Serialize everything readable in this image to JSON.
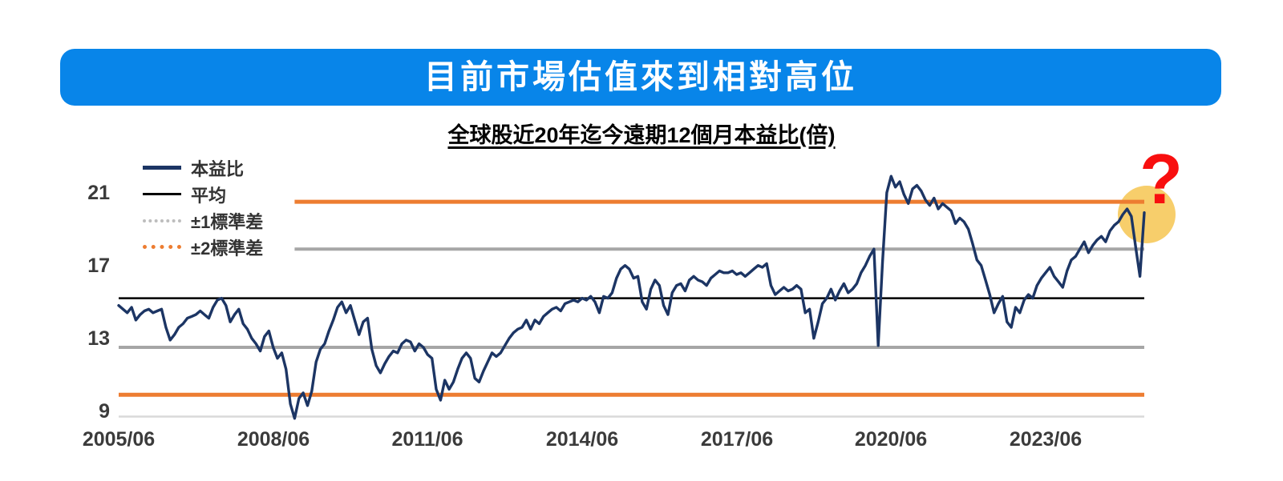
{
  "title": "目前市場估值來到相對高位",
  "colors": {
    "banner": "#0885E9",
    "series": "#1C3564",
    "mean_line": "#000000",
    "sd1_line": "#A6A6A6",
    "sd2_line": "#ED7D31",
    "axis_line": "#D9D9D9",
    "tick_text": "#3B3B3B",
    "question_mark": "#F80F0F",
    "highlight_circle": "#F7CE6B"
  },
  "legend": {
    "items": [
      {
        "name": "pe",
        "label": "本益比",
        "style": "solid",
        "color": "#1C3564"
      },
      {
        "name": "mean",
        "label": "平均",
        "style": "solid",
        "color": "#000000"
      },
      {
        "name": "sd1",
        "label": "±1標準差",
        "style": "dotted",
        "color": "#BDBDBD"
      },
      {
        "name": "sd2",
        "label": "±2標準差",
        "style": "dotted",
        "color": "#ED7D31"
      }
    ]
  },
  "annotations": {
    "question_mark": {
      "symbol": "?",
      "color": "#F80F0F"
    },
    "highlight_circle": {
      "color": "#F7CE6B"
    }
  },
  "chart_data": {
    "type": "line",
    "title": "全球股近20年迄今遠期12個月本益比(倍)",
    "xlabel": "",
    "ylabel": "",
    "frequency": "monthly",
    "x_start": "2005/06",
    "x_end": "2025/05",
    "xticks": [
      "2005/06",
      "2008/06",
      "2011/06",
      "2014/06",
      "2017/06",
      "2020/06",
      "2023/06"
    ],
    "yticks": [
      21,
      17,
      13,
      9
    ],
    "ylim": [
      8.7,
      22.3
    ],
    "grid": false,
    "legend_position": "top-left",
    "ref_lines": [
      {
        "name": "mean-line",
        "label": "平均",
        "value": 15.2,
        "color": "#000000",
        "width": 2.5,
        "x_start_month": 0
      },
      {
        "name": "plus-1sd-line",
        "label": "+1標準差",
        "value": 17.9,
        "color": "#A6A6A6",
        "width": 4,
        "x_start_month": 41
      },
      {
        "name": "minus-1sd-line",
        "label": "-1標準差",
        "value": 12.5,
        "color": "#A6A6A6",
        "width": 4,
        "x_start_month": 0
      },
      {
        "name": "plus-2sd-line",
        "label": "+2標準差",
        "value": 20.5,
        "color": "#ED7D31",
        "width": 5,
        "x_start_month": 41
      },
      {
        "name": "minus-2sd-line",
        "label": "-2標準差",
        "value": 9.9,
        "color": "#ED7D31",
        "width": 5,
        "x_start_month": 0
      }
    ],
    "series": [
      {
        "name": "本益比",
        "color": "#1C3564",
        "values": [
          14.8,
          14.6,
          14.4,
          14.7,
          14.0,
          14.3,
          14.5,
          14.6,
          14.4,
          14.5,
          14.6,
          13.6,
          12.9,
          13.2,
          13.6,
          13.8,
          14.1,
          14.2,
          14.3,
          14.5,
          14.3,
          14.1,
          14.7,
          15.1,
          15.2,
          14.8,
          13.9,
          14.3,
          14.6,
          13.8,
          13.5,
          13.0,
          12.7,
          12.3,
          13.1,
          13.4,
          12.5,
          11.9,
          12.2,
          11.3,
          9.4,
          8.6,
          9.7,
          10.0,
          9.3,
          10.1,
          11.7,
          12.4,
          12.7,
          13.4,
          14.0,
          14.7,
          15.0,
          14.4,
          14.8,
          14.0,
          13.2,
          13.9,
          14.1,
          12.4,
          11.5,
          11.1,
          11.6,
          12.0,
          12.3,
          12.2,
          12.7,
          12.9,
          12.8,
          12.3,
          12.7,
          12.5,
          12.1,
          11.9,
          10.2,
          9.6,
          10.7,
          10.2,
          10.6,
          11.3,
          11.9,
          12.2,
          11.9,
          10.8,
          10.6,
          11.2,
          11.7,
          12.2,
          12.0,
          12.2,
          12.6,
          13.0,
          13.3,
          13.5,
          13.6,
          14.0,
          13.5,
          14.0,
          13.8,
          14.2,
          14.4,
          14.6,
          14.7,
          14.5,
          14.9,
          15.0,
          15.1,
          15.0,
          15.2,
          15.1,
          15.3,
          15.0,
          14.4,
          15.3,
          15.2,
          15.5,
          16.3,
          16.8,
          17.0,
          16.8,
          16.3,
          16.4,
          15.0,
          14.6,
          15.7,
          16.2,
          15.9,
          14.8,
          14.3,
          15.5,
          15.9,
          16.0,
          15.6,
          16.2,
          16.4,
          16.2,
          16.1,
          15.9,
          16.3,
          16.5,
          16.7,
          16.6,
          16.6,
          16.7,
          16.5,
          16.6,
          16.4,
          16.6,
          16.8,
          17.0,
          16.9,
          17.1,
          15.9,
          15.4,
          15.6,
          15.8,
          15.6,
          15.7,
          15.9,
          15.7,
          14.4,
          14.6,
          13.0,
          13.9,
          14.9,
          15.2,
          15.7,
          15.1,
          15.6,
          16.0,
          15.5,
          15.7,
          16.0,
          16.6,
          17.0,
          17.5,
          17.9,
          12.6,
          17.2,
          21.0,
          21.9,
          21.3,
          21.6,
          20.9,
          20.4,
          21.2,
          21.4,
          21.1,
          20.6,
          20.3,
          20.7,
          20.1,
          20.4,
          20.2,
          20.0,
          19.3,
          19.6,
          19.4,
          19.0,
          18.2,
          17.3,
          17.0,
          16.2,
          15.4,
          14.4,
          14.9,
          15.3,
          13.9,
          13.6,
          14.7,
          14.4,
          15.1,
          15.4,
          15.2,
          15.9,
          16.3,
          16.6,
          16.9,
          16.4,
          16.1,
          15.8,
          16.7,
          17.3,
          17.5,
          17.9,
          18.3,
          17.7,
          18.1,
          18.4,
          18.6,
          18.3,
          18.9,
          19.2,
          19.4,
          19.8,
          20.1,
          19.7,
          18.0,
          16.4,
          19.9
        ]
      }
    ]
  }
}
